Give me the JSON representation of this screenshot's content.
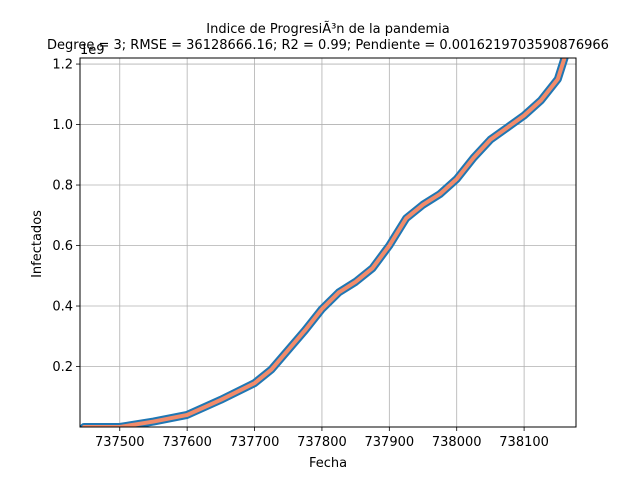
{
  "chart_data": {
    "type": "line",
    "title": "Indice de ProgresiÃ³n de la pandemia",
    "subtitle": "Degree = 3; RMSE = 36128666.16; R2 = 0.99; Pendiente = 0.0016219703590876966",
    "xlabel": "Fecha",
    "ylabel": "Infectados",
    "y_offset_text": "1e9",
    "xlim": [
      737441,
      738177
    ],
    "ylim": [
      0,
      1.22
    ],
    "grid": true,
    "x_ticks": [
      737500,
      737600,
      737700,
      737800,
      737900,
      738000,
      738100
    ],
    "y_ticks": [
      0.2,
      0.4,
      0.6,
      0.8,
      1.0,
      1.2
    ],
    "x_tick_labels": [
      "737500",
      "737600",
      "737700",
      "737800",
      "737900",
      "738000",
      "738100"
    ],
    "y_tick_labels": [
      "0.2",
      "0.4",
      "0.6",
      "0.8",
      "1.0",
      "1.2"
    ],
    "series": [
      {
        "color": "#1f77b4",
        "x": [
          737447,
          737500,
          737550,
          737600,
          737650,
          737700,
          737725,
          737750,
          737775,
          737800,
          737825,
          737850,
          737875,
          737900,
          737925,
          737950,
          737975,
          738000,
          738025,
          738050,
          738075,
          738100,
          738125,
          738150,
          738160
        ],
        "values": [
          0.0,
          0.0,
          0.018,
          0.04,
          0.09,
          0.145,
          0.19,
          0.255,
          0.32,
          0.39,
          0.445,
          0.48,
          0.525,
          0.6,
          0.69,
          0.735,
          0.77,
          0.82,
          0.89,
          0.95,
          0.99,
          1.03,
          1.08,
          1.15,
          1.22
        ]
      },
      {
        "color": "#f28b6a",
        "x": [
          737447,
          737500,
          737550,
          737600,
          737650,
          737700,
          737725,
          737750,
          737775,
          737800,
          737825,
          737850,
          737875,
          737900,
          737925,
          737950,
          737975,
          738000,
          738025,
          738050,
          738075,
          738100,
          738125,
          738150,
          738160
        ],
        "values": [
          0.0,
          0.0,
          0.018,
          0.04,
          0.09,
          0.145,
          0.19,
          0.255,
          0.32,
          0.39,
          0.445,
          0.48,
          0.525,
          0.6,
          0.69,
          0.735,
          0.77,
          0.82,
          0.89,
          0.95,
          0.99,
          1.03,
          1.08,
          1.15,
          1.22
        ]
      }
    ]
  }
}
